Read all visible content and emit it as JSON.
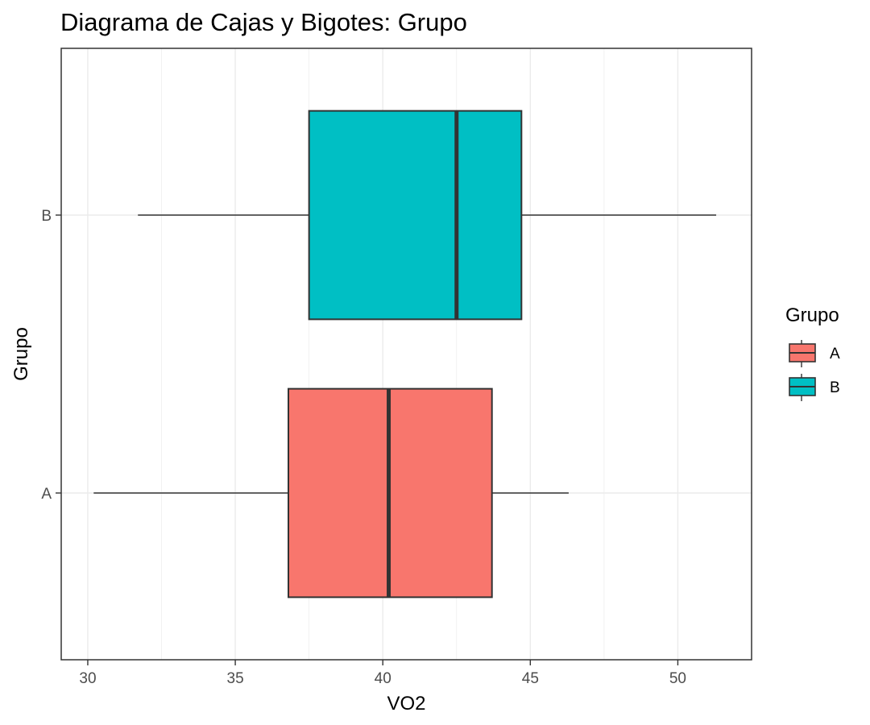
{
  "chart_data": {
    "type": "boxplot",
    "orientation": "horizontal",
    "title": "Diagrama de Cajas y Bigotes: Grupo",
    "xlabel": "VO2",
    "ylabel": "Grupo",
    "xlim": [
      29.1,
      52.5
    ],
    "x_ticks": [
      30,
      35,
      40,
      45,
      50
    ],
    "categories": [
      "A",
      "B"
    ],
    "grid": true,
    "legend": {
      "title": "Grupo",
      "position": "right",
      "entries": [
        "A",
        "B"
      ]
    },
    "series": [
      {
        "category": "A",
        "whisker_low": 30.2,
        "q1": 36.8,
        "median": 40.2,
        "q3": 43.7,
        "whisker_high": 46.3,
        "color": "#F8766D"
      },
      {
        "category": "B",
        "whisker_low": 31.7,
        "q1": 37.5,
        "median": 42.5,
        "q3": 44.7,
        "whisker_high": 51.3,
        "color": "#00BFC4"
      }
    ]
  }
}
